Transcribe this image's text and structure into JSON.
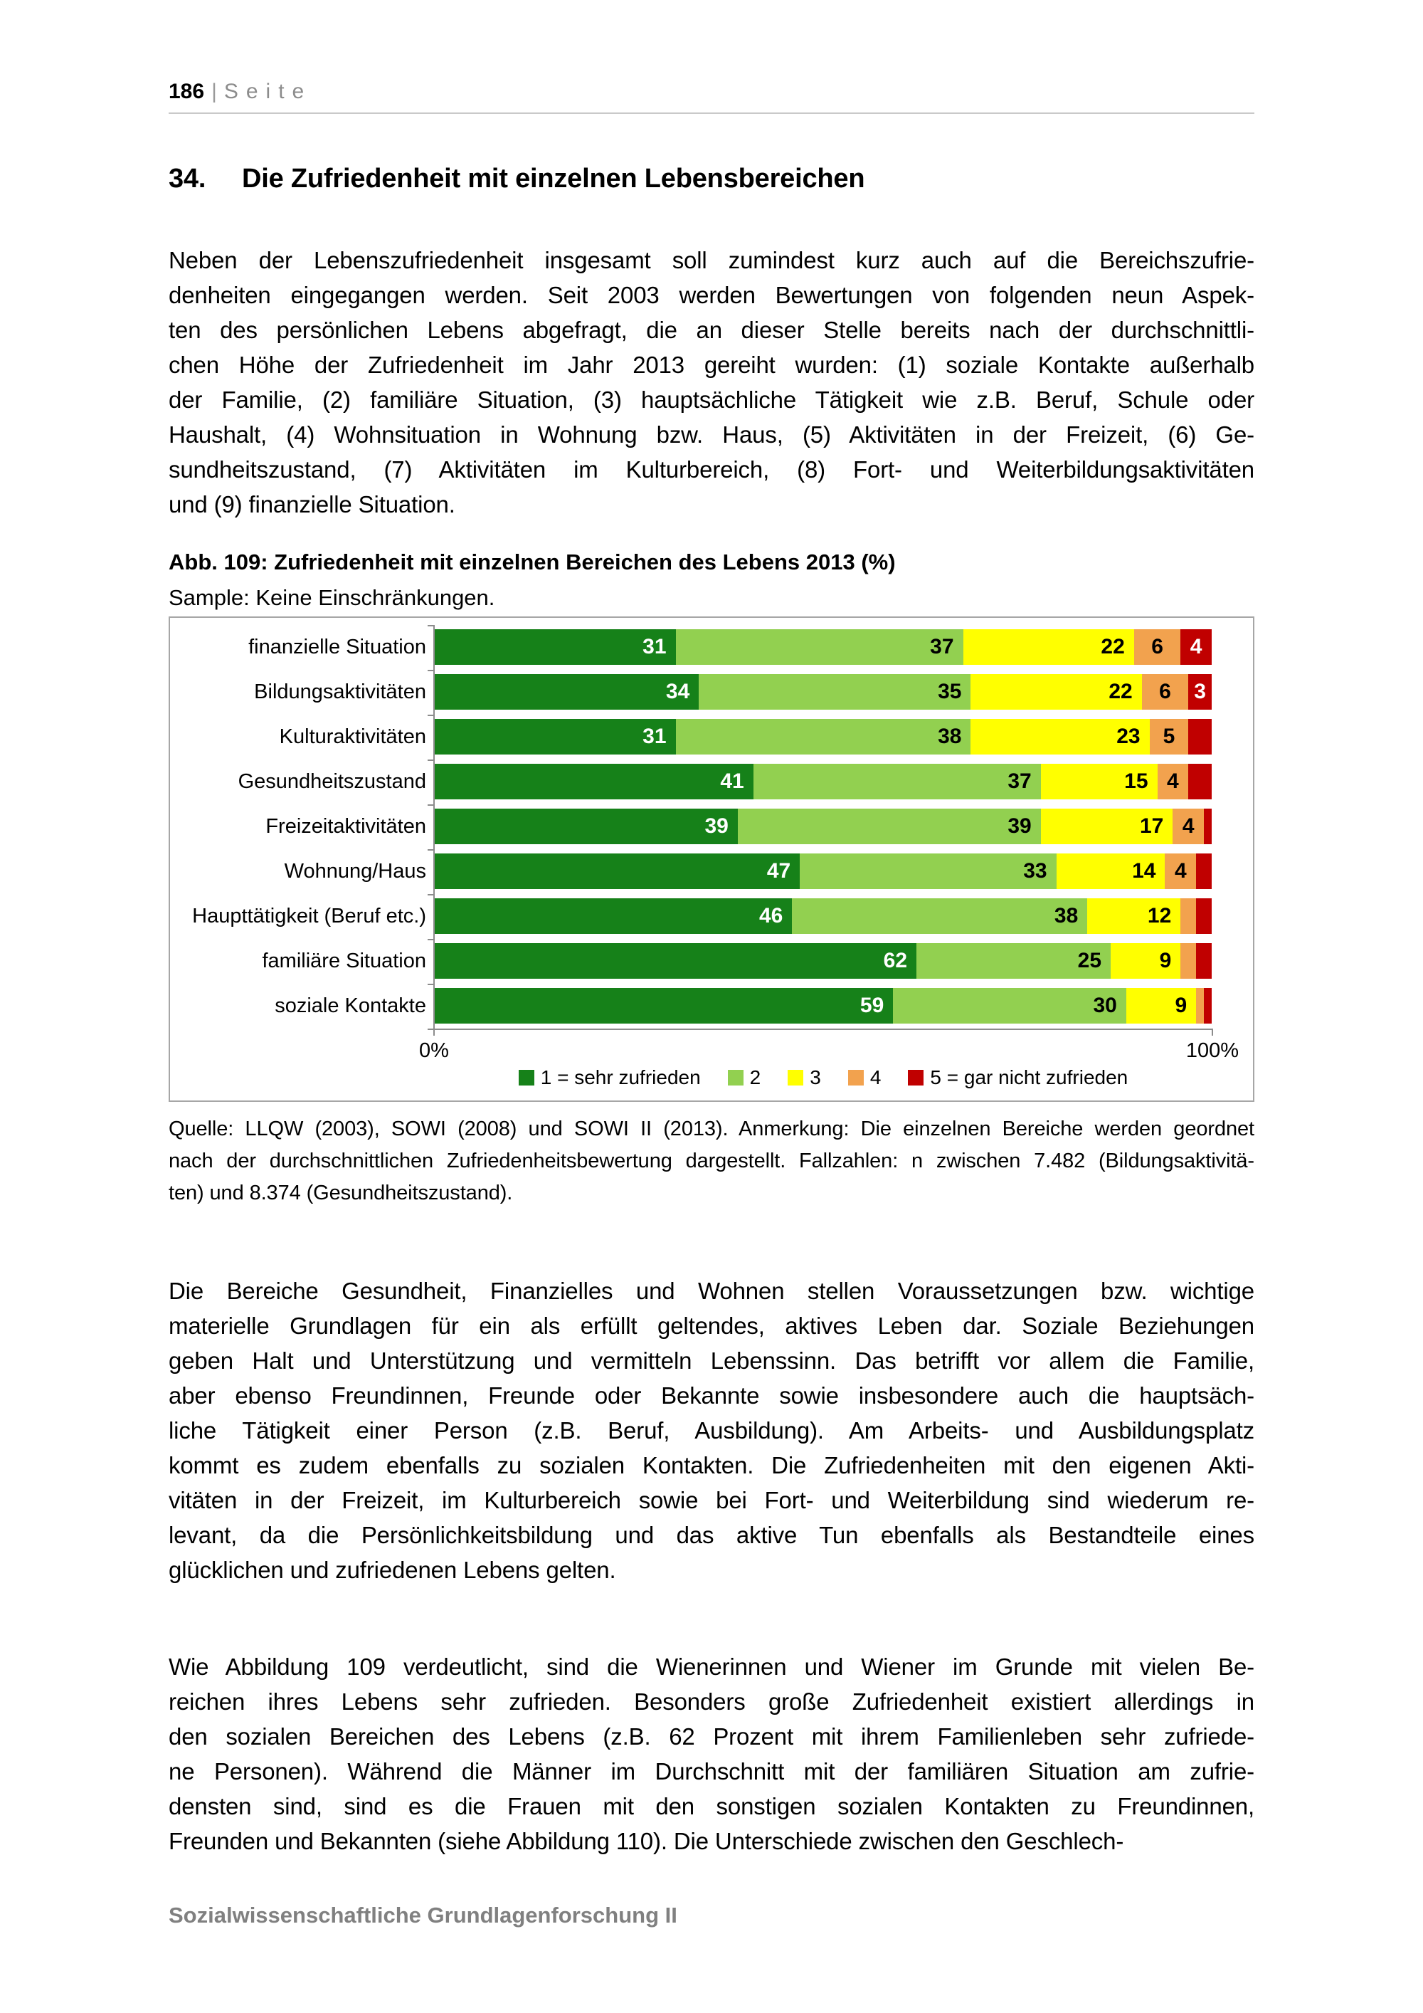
{
  "header": {
    "page_number": "186",
    "separator": "|",
    "page_word": "Seite"
  },
  "section": {
    "number": "34.",
    "title": "Die Zufriedenheit mit einzelnen Lebensbereichen"
  },
  "paragraph1": {
    "lines": [
      "Neben der Lebenszufriedenheit insgesamt soll zumindest kurz auch auf die Bereichszufrie-",
      "denheiten eingegangen werden. Seit 2003 werden Bewertungen von folgenden neun Aspek-",
      "ten des persönlichen Lebens abgefragt, die an dieser Stelle bereits nach der durchschnittli-",
      "chen Höhe der Zufriedenheit im Jahr 2013 gereiht wurden: (1) soziale Kontakte außerhalb",
      "der Familie, (2) familiäre Situation, (3) hauptsächliche Tätigkeit wie z.B. Beruf, Schule oder",
      "Haushalt, (4) Wohnsituation in Wohnung bzw. Haus, (5) Aktivitäten in der Freizeit, (6) Ge-",
      "sundheitszustand, (7) Aktivitäten im Kulturbereich, (8) Fort- und Weiterbildungsaktivitäten",
      "und (9) finanzielle Situation."
    ]
  },
  "figure": {
    "caption": "Abb. 109: Zufriedenheit mit einzelnen Bereichen des Lebens 2013 (%)",
    "sample": "Sample: Keine Einschränkungen.",
    "source_lines": [
      "Quelle: LLQW (2003), SOWI (2008) und SOWI II (2013). Anmerkung: Die einzelnen Bereiche werden geordnet",
      "nach der durchschnittlichen Zufriedenheitsbewertung dargestellt. Fallzahlen: n zwischen 7.482 (Bildungsaktivitä-",
      "ten) und 8.374 (Gesundheitszustand)."
    ]
  },
  "chart_data": {
    "type": "bar",
    "stacked": true,
    "orientation": "horizontal",
    "title": "Zufriedenheit mit einzelnen Bereichen des Lebens 2013 (%)",
    "xlim": [
      0,
      100
    ],
    "x_ticks": [
      "0%",
      "100%"
    ],
    "grid": false,
    "legend_position": "bottom",
    "categories": [
      "finanzielle Situation",
      "Bildungsaktivitäten",
      "Kulturaktivitäten",
      "Gesundheitszustand",
      "Freizeitaktivitäten",
      "Wohnung/Haus",
      "Haupttätigkeit (Beruf etc.)",
      "familiäre Situation",
      "soziale Kontakte"
    ],
    "series": [
      {
        "name": "1 = sehr zufrieden",
        "color": "#168119",
        "label_color": "#ffffff",
        "values": [
          31,
          34,
          31,
          41,
          39,
          47,
          46,
          62,
          59
        ],
        "labels": [
          "31",
          "34",
          "31",
          "41",
          "39",
          "47",
          "46",
          "62",
          "59"
        ]
      },
      {
        "name": "2",
        "color": "#92d050",
        "label_color": "#000000",
        "values": [
          37,
          35,
          38,
          37,
          39,
          33,
          38,
          25,
          30
        ],
        "labels": [
          "37",
          "35",
          "38",
          "37",
          "39",
          "33",
          "38",
          "25",
          "30"
        ]
      },
      {
        "name": "3",
        "color": "#ffff00",
        "label_color": "#000000",
        "values": [
          22,
          22,
          23,
          15,
          17,
          14,
          12,
          9,
          9
        ],
        "labels": [
          "22",
          "22",
          "23",
          "15",
          "17",
          "14",
          "12",
          "9",
          "9"
        ]
      },
      {
        "name": "4",
        "color": "#f2a24e",
        "label_color": "#000000",
        "values": [
          6,
          6,
          5,
          4,
          4,
          4,
          2,
          2,
          1
        ],
        "labels": [
          "6",
          "6",
          "5",
          "4",
          "4",
          "4",
          "",
          "",
          ""
        ]
      },
      {
        "name": "5 = gar nicht zufrieden",
        "color": "#c00000",
        "label_color": "#ffffff",
        "values": [
          4,
          3,
          3,
          3,
          1,
          2,
          2,
          2,
          1
        ],
        "labels": [
          "4",
          "3",
          "",
          "",
          "",
          "",
          "",
          "",
          ""
        ]
      }
    ]
  },
  "paragraph2": {
    "lines": [
      "Die Bereiche Gesundheit, Finanzielles und Wohnen stellen Voraussetzungen bzw. wichtige",
      "materielle Grundlagen für ein als erfüllt geltendes, aktives Leben dar. Soziale Beziehungen",
      "geben Halt und Unterstützung und vermitteln Lebenssinn. Das betrifft vor allem die Familie,",
      "aber ebenso Freundinnen, Freunde oder Bekannte sowie insbesondere auch die hauptsäch-",
      "liche Tätigkeit einer Person (z.B. Beruf, Ausbildung). Am Arbeits- und Ausbildungsplatz",
      "kommt es zudem ebenfalls zu sozialen Kontakten. Die Zufriedenheiten mit den eigenen Akti-",
      "vitäten in der Freizeit, im Kulturbereich sowie bei Fort- und Weiterbildung sind wiederum re-",
      "levant, da die Persönlichkeitsbildung und das aktive Tun ebenfalls als Bestandteile eines",
      "glücklichen und zufriedenen Lebens gelten."
    ]
  },
  "paragraph3": {
    "lines": [
      "Wie Abbildung 109 verdeutlicht, sind die Wienerinnen und Wiener im Grunde mit vielen Be-",
      "reichen ihres Lebens sehr zufrieden. Besonders große Zufriedenheit existiert allerdings in",
      "den sozialen Bereichen des Lebens (z.B. 62 Prozent mit ihrem Familienleben sehr zufriede-",
      "ne Personen). Während die Männer im Durchschnitt mit der familiären Situation am zufrie-",
      "densten sind, sind es die Frauen mit den sonstigen sozialen Kontakten zu Freundinnen,",
      "Freunden und Bekannten (siehe Abbildung 110). Die Unterschiede zwischen den Geschlech-"
    ]
  },
  "footer": {
    "text": "Sozialwissenschaftliche Grundlagenforschung II"
  }
}
